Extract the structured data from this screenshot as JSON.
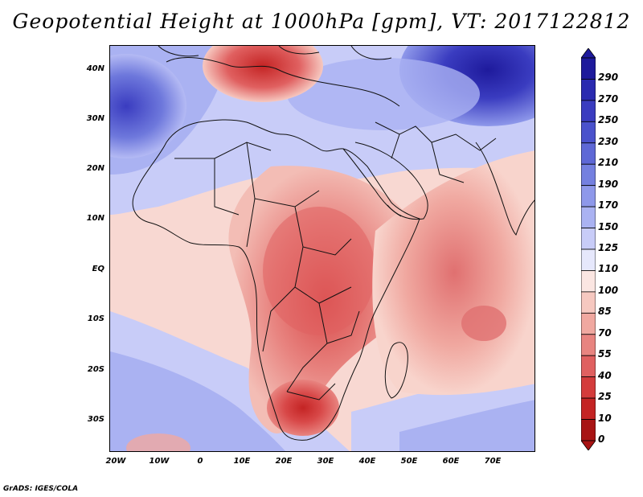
{
  "title": "Geopotential Height at 1000hPa [gpm], VT: 2017122812",
  "credit": "GrADS: IGES/COLA",
  "map": {
    "lat_labels": [
      "40N",
      "30N",
      "20N",
      "10N",
      "EQ",
      "10S",
      "20S",
      "30S"
    ],
    "lon_labels": [
      "20W",
      "10W",
      "0",
      "10E",
      "20E",
      "30E",
      "40E",
      "50E",
      "60E",
      "70E"
    ]
  },
  "colorbar": {
    "labels": [
      "290",
      "270",
      "250",
      "230",
      "210",
      "190",
      "170",
      "150",
      "125",
      "110",
      "100",
      "85",
      "70",
      "55",
      "40",
      "25",
      "10",
      "0"
    ],
    "colors": [
      "#1e1a9c",
      "#2a2ab0",
      "#3a3cc0",
      "#4a52cc",
      "#5e68d6",
      "#7480e0",
      "#8e98ea",
      "#aab2f2",
      "#c8ccf8",
      "#e6e8fc",
      "#fbe6e2",
      "#f6c8c0",
      "#f0a8a0",
      "#e88480",
      "#e06060",
      "#d43c3c",
      "#c42424",
      "#a81414"
    ]
  }
}
